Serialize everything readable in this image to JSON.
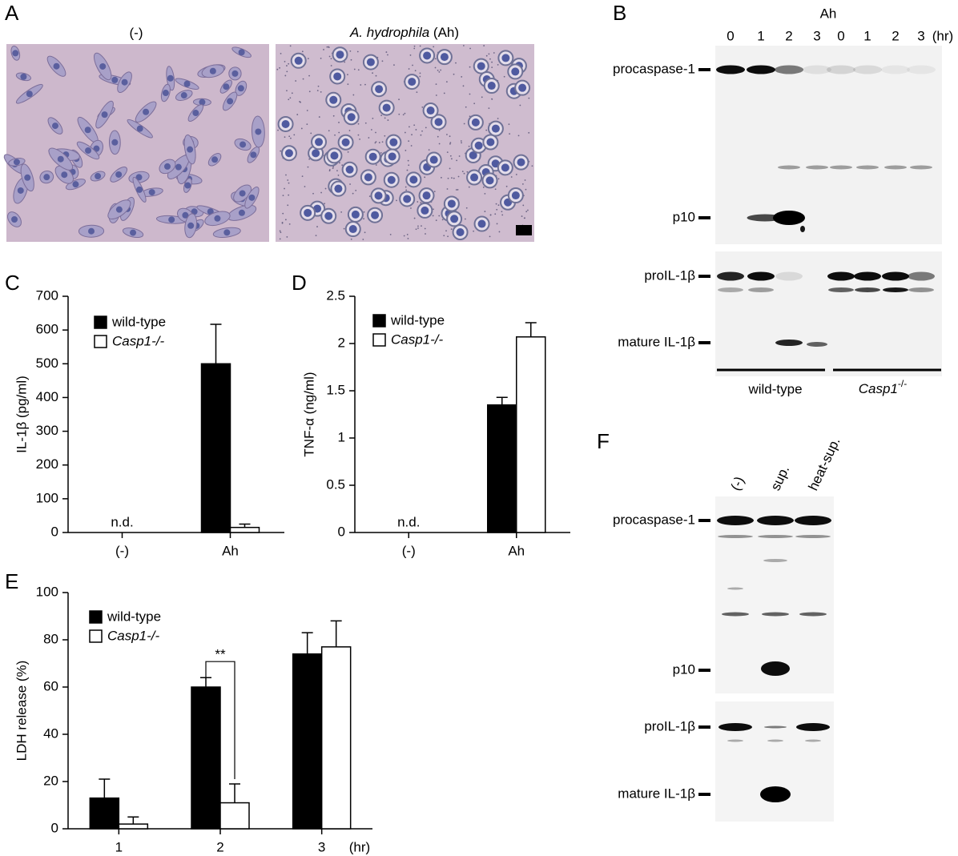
{
  "figure": {
    "A": {
      "panel": "A",
      "left_title": "(-)",
      "right_title_italic": "A. hydrophila",
      "right_title_rest": "(Ah)"
    },
    "B": {
      "panel": "B",
      "treatment": "Ah",
      "lanes": [
        "0",
        "1",
        "2",
        "3",
        "0",
        "1",
        "2",
        "3"
      ],
      "time_unit": "(hr)",
      "bands": [
        "procaspase-1",
        "p10",
        "proIL-1β",
        "mature IL-1β"
      ],
      "groups": [
        {
          "name": "wild-type"
        },
        {
          "name_italic": "Casp1",
          "name_sup": "-/-"
        }
      ]
    },
    "F": {
      "panel": "F",
      "lanes": [
        "(-)",
        "sup.",
        "heat-sup."
      ],
      "bands": [
        "procaspase-1",
        "p10",
        "proIL-1β",
        "mature IL-1β"
      ]
    }
  },
  "chart_data": [
    {
      "type": "bar",
      "panel": "C",
      "y_label": "IL-1β (pg/ml)",
      "categories": [
        "(-)",
        "Ah"
      ],
      "series": [
        {
          "name": "wild-type",
          "color": "#000000",
          "values": [
            null,
            500
          ],
          "errors": [
            null,
            117
          ]
        },
        {
          "name": "Casp1-/-",
          "color": "#ffffff",
          "values": [
            null,
            15
          ],
          "errors": [
            null,
            10
          ]
        }
      ],
      "annotations": [
        {
          "text": "n.d.",
          "category": 0
        }
      ],
      "ylim": [
        0,
        700
      ],
      "yticks": [
        0,
        100,
        200,
        300,
        400,
        500,
        600,
        700
      ],
      "legend": "upper left"
    },
    {
      "type": "bar",
      "panel": "D",
      "y_label": "TNF-α (ng/ml)",
      "categories": [
        "(-)",
        "Ah"
      ],
      "series": [
        {
          "name": "wild-type",
          "color": "#000000",
          "values": [
            null,
            1.35
          ],
          "errors": [
            null,
            0.08
          ]
        },
        {
          "name": "Casp1-/-",
          "color": "#ffffff",
          "values": [
            null,
            2.07
          ],
          "errors": [
            null,
            0.15
          ]
        }
      ],
      "annotations": [
        {
          "text": "n.d.",
          "category": 0
        }
      ],
      "ylim": [
        0,
        2.5
      ],
      "yticks": [
        0,
        0.5,
        1,
        1.5,
        2,
        2.5
      ],
      "legend": "upper left"
    },
    {
      "type": "bar",
      "panel": "E",
      "y_label": "LDH release (%)",
      "categories": [
        "1",
        "2",
        "3"
      ],
      "x_unit": "(hr)",
      "series": [
        {
          "name": "wild-type",
          "color": "#000000",
          "values": [
            13,
            60,
            74
          ],
          "errors": [
            8,
            4,
            9
          ]
        },
        {
          "name": "Casp1-/-",
          "color": "#ffffff",
          "values": [
            2,
            11,
            77
          ],
          "errors": [
            3,
            8,
            11
          ]
        }
      ],
      "annotations": [
        {
          "text": "**",
          "category": 1
        }
      ],
      "ylim": [
        0,
        100
      ],
      "yticks": [
        0,
        20,
        40,
        60,
        80,
        100
      ],
      "legend": "upper left"
    }
  ]
}
